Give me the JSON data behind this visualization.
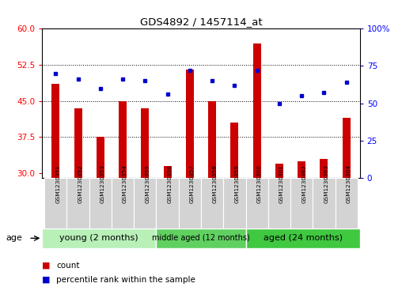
{
  "title": "GDS4892 / 1457114_at",
  "samples": [
    "GSM1230351",
    "GSM1230352",
    "GSM1230353",
    "GSM1230354",
    "GSM1230355",
    "GSM1230356",
    "GSM1230357",
    "GSM1230358",
    "GSM1230359",
    "GSM1230360",
    "GSM1230361",
    "GSM1230362",
    "GSM1230363",
    "GSM1230364"
  ],
  "counts": [
    48.5,
    43.5,
    37.5,
    45.0,
    43.5,
    31.5,
    51.5,
    45.0,
    40.5,
    57.0,
    32.0,
    32.5,
    33.0,
    41.5
  ],
  "percentiles": [
    70,
    66,
    60,
    66,
    65,
    56,
    72,
    65,
    62,
    72,
    50,
    55,
    57,
    64
  ],
  "groups": [
    {
      "label": "young (2 months)",
      "start": 0,
      "end": 5,
      "color": "#b8f0b8",
      "text_size": 8
    },
    {
      "label": "middle aged (12 months)",
      "start": 5,
      "end": 9,
      "color": "#60d060",
      "text_size": 7
    },
    {
      "label": "aged (24 months)",
      "start": 9,
      "end": 14,
      "color": "#40c840",
      "text_size": 8
    }
  ],
  "ylim_left": [
    29,
    60
  ],
  "ylim_right": [
    0,
    100
  ],
  "yticks_left": [
    30,
    37.5,
    45,
    52.5,
    60
  ],
  "yticks_right": [
    0,
    25,
    50,
    75,
    100
  ],
  "bar_color": "#CC0000",
  "dot_color": "#0000CC",
  "bar_width": 0.35,
  "sample_bg_color": "#D3D3D3",
  "legend_items": [
    {
      "color": "#CC0000",
      "label": "count"
    },
    {
      "color": "#0000CC",
      "label": "percentile rank within the sample"
    }
  ]
}
